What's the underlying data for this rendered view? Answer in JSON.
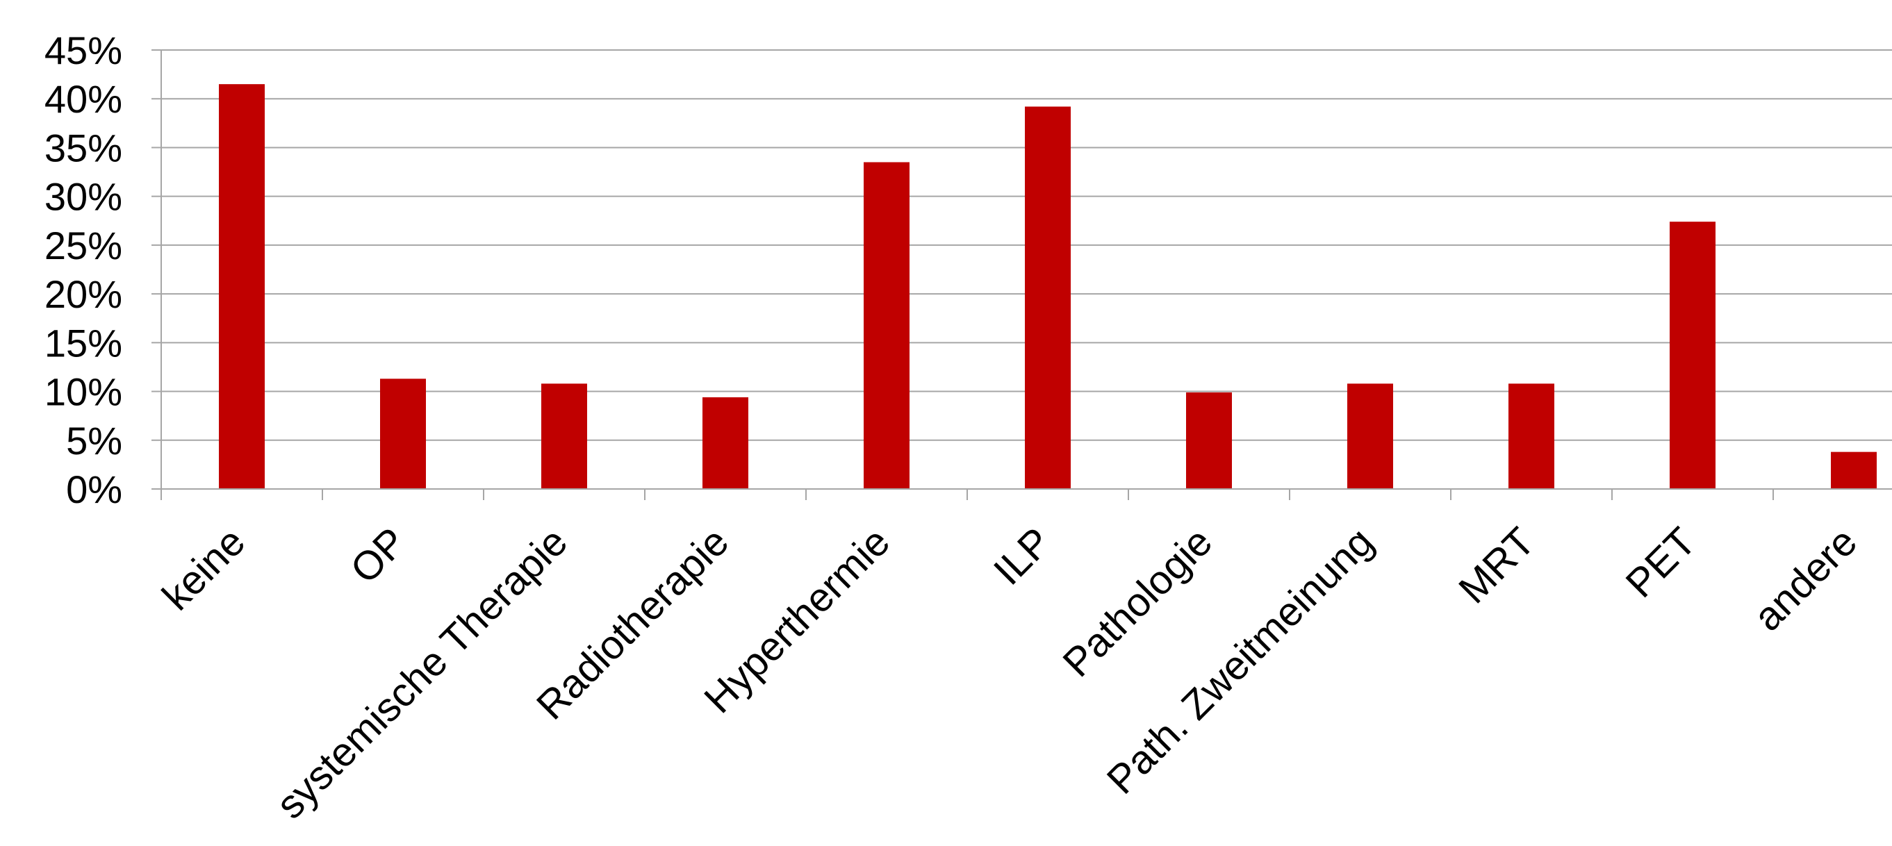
{
  "chart_data": {
    "type": "bar",
    "categories": [
      "keine",
      "OP",
      "systemische Therapie",
      "Radiotherapie",
      "Hyperthermie",
      "ILP",
      "Pathologie",
      "Path. Zweitmeinung",
      "MRT",
      "PET",
      "andere"
    ],
    "series": [
      {
        "values": [
          41.5,
          11.3,
          10.8,
          9.4,
          33.5,
          39.2,
          9.9,
          10.8,
          10.8,
          27.4,
          3.8
        ]
      }
    ],
    "yticks": [
      "0%",
      "5%",
      "10%",
      "15%",
      "20%",
      "25%",
      "30%",
      "35%",
      "40%",
      "45%"
    ],
    "ylim": [
      0,
      45
    ],
    "ytick_step": 5,
    "grid": true,
    "title": "",
    "xlabel": "",
    "ylabel": "",
    "colors": {
      "bar": "#C00000",
      "grid": "#A6A6A6",
      "axis": "#A6A6A6"
    }
  }
}
